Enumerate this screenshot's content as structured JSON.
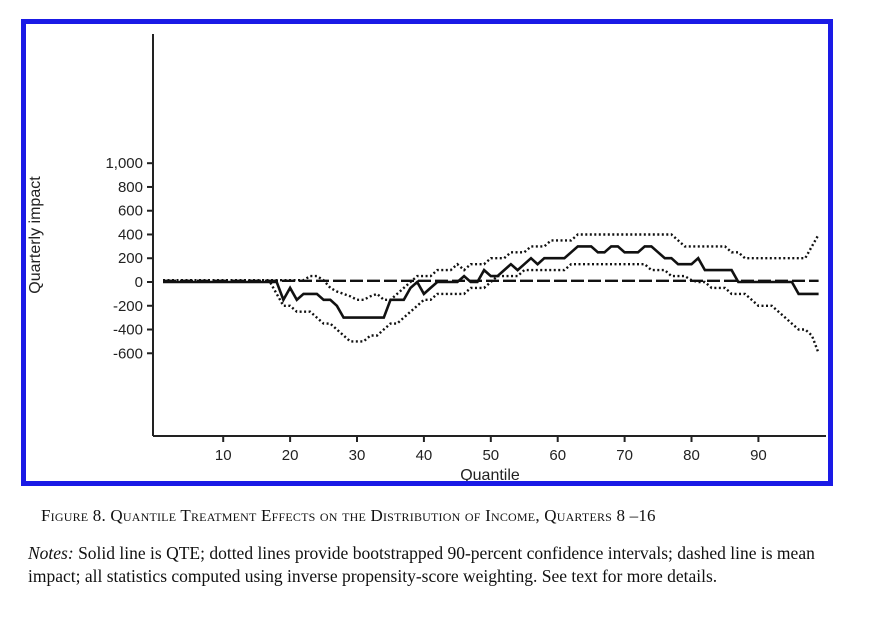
{
  "chart_data": {
    "type": "line",
    "xlabel": "Quantile",
    "ylabel": "Quarterly impact",
    "xlim": [
      0,
      100
    ],
    "ylim": [
      -650,
      1050
    ],
    "xticks": [
      10,
      20,
      30,
      40,
      50,
      60,
      70,
      80,
      90
    ],
    "xtick_labels": [
      "10",
      "20",
      "30",
      "40",
      "50",
      "60",
      "70",
      "80",
      "90"
    ],
    "yticks": [
      -600,
      -400,
      -200,
      0,
      200,
      400,
      600,
      800,
      1000
    ],
    "ytick_labels": [
      "-600",
      "-400",
      "-200",
      "0",
      "200",
      "400",
      "600",
      "800",
      "1,000"
    ],
    "grid": false,
    "series": [
      {
        "style": "solid",
        "x": [
          1,
          2,
          3,
          4,
          5,
          6,
          7,
          8,
          9,
          10,
          11,
          12,
          13,
          14,
          15,
          16,
          17,
          18,
          19,
          20,
          21,
          22,
          23,
          24,
          25,
          26,
          27,
          28,
          29,
          30,
          31,
          32,
          33,
          34,
          35,
          36,
          37,
          38,
          39,
          40,
          41,
          42,
          43,
          44,
          45,
          46,
          47,
          48,
          49,
          50,
          51,
          52,
          53,
          54,
          55,
          56,
          57,
          58,
          59,
          60,
          61,
          62,
          63,
          64,
          65,
          66,
          67,
          68,
          69,
          70,
          71,
          72,
          73,
          74,
          75,
          76,
          77,
          78,
          79,
          80,
          81,
          82,
          83,
          84,
          85,
          86,
          87,
          88,
          89,
          90,
          91,
          92,
          93,
          94,
          95,
          96,
          97,
          98,
          99
        ],
        "y": [
          0,
          0,
          0,
          0,
          0,
          0,
          0,
          0,
          0,
          0,
          0,
          0,
          0,
          0,
          0,
          0,
          0,
          0,
          -150,
          -50,
          -150,
          -100,
          -100,
          -100,
          -150,
          -150,
          -200,
          -300,
          -300,
          -300,
          -300,
          -300,
          -300,
          -300,
          -150,
          -150,
          -150,
          -50,
          0,
          -100,
          -50,
          0,
          0,
          0,
          0,
          50,
          0,
          0,
          100,
          50,
          50,
          100,
          150,
          100,
          150,
          200,
          150,
          200,
          200,
          200,
          200,
          250,
          300,
          300,
          300,
          250,
          250,
          300,
          300,
          250,
          250,
          250,
          300,
          300,
          250,
          200,
          200,
          150,
          150,
          150,
          200,
          100,
          100,
          100,
          100,
          100,
          0,
          0,
          0,
          0,
          0,
          0,
          0,
          0,
          0,
          -100,
          -100,
          -100,
          -100
        ]
      },
      {
        "style": "dotted",
        "x": [
          1,
          2,
          3,
          4,
          5,
          6,
          7,
          8,
          9,
          10,
          11,
          12,
          13,
          14,
          15,
          16,
          17,
          18,
          19,
          20,
          21,
          22,
          23,
          24,
          25,
          26,
          27,
          28,
          29,
          30,
          31,
          32,
          33,
          34,
          35,
          36,
          37,
          38,
          39,
          40,
          41,
          42,
          43,
          44,
          45,
          46,
          47,
          48,
          49,
          50,
          51,
          52,
          53,
          54,
          55,
          56,
          57,
          58,
          59,
          60,
          61,
          62,
          63,
          64,
          65,
          66,
          67,
          68,
          69,
          70,
          71,
          72,
          73,
          74,
          75,
          76,
          77,
          78,
          79,
          80,
          81,
          82,
          83,
          84,
          85,
          86,
          87,
          88,
          89,
          90,
          91,
          92,
          93,
          94,
          95,
          96,
          97,
          98,
          99
        ],
        "y": [
          15,
          15,
          15,
          15,
          15,
          15,
          15,
          15,
          15,
          15,
          15,
          15,
          15,
          15,
          15,
          15,
          15,
          15,
          15,
          15,
          15,
          15,
          50,
          50,
          15,
          -50,
          -80,
          -100,
          -120,
          -150,
          -150,
          -120,
          -100,
          -150,
          -150,
          -100,
          -50,
          0,
          50,
          50,
          50,
          100,
          100,
          100,
          150,
          100,
          150,
          150,
          150,
          200,
          200,
          200,
          250,
          250,
          250,
          300,
          300,
          300,
          350,
          350,
          350,
          350,
          400,
          400,
          400,
          400,
          400,
          400,
          400,
          400,
          400,
          400,
          400,
          400,
          400,
          400,
          400,
          350,
          300,
          300,
          300,
          300,
          300,
          300,
          300,
          250,
          250,
          200,
          200,
          200,
          200,
          200,
          200,
          200,
          200,
          200,
          200,
          300,
          400
        ]
      },
      {
        "style": "dotted",
        "x": [
          1,
          2,
          3,
          4,
          5,
          6,
          7,
          8,
          9,
          10,
          11,
          12,
          13,
          14,
          15,
          16,
          17,
          18,
          19,
          20,
          21,
          22,
          23,
          24,
          25,
          26,
          27,
          28,
          29,
          30,
          31,
          32,
          33,
          34,
          35,
          36,
          37,
          38,
          39,
          40,
          41,
          42,
          43,
          44,
          45,
          46,
          47,
          48,
          49,
          50,
          51,
          52,
          53,
          54,
          55,
          56,
          57,
          58,
          59,
          60,
          61,
          62,
          63,
          64,
          65,
          66,
          67,
          68,
          69,
          70,
          71,
          72,
          73,
          74,
          75,
          76,
          77,
          78,
          79,
          80,
          81,
          82,
          83,
          84,
          85,
          86,
          87,
          88,
          89,
          90,
          91,
          92,
          93,
          94,
          95,
          96,
          97,
          98,
          99
        ],
        "y": [
          15,
          15,
          15,
          15,
          15,
          15,
          15,
          15,
          15,
          15,
          15,
          15,
          15,
          15,
          15,
          15,
          0,
          -100,
          -200,
          -200,
          -250,
          -250,
          -250,
          -300,
          -350,
          -350,
          -400,
          -450,
          -500,
          -500,
          -500,
          -450,
          -450,
          -400,
          -350,
          -350,
          -300,
          -250,
          -200,
          -150,
          -150,
          -100,
          -100,
          -100,
          -100,
          -100,
          -50,
          -50,
          -50,
          0,
          50,
          50,
          50,
          50,
          100,
          100,
          100,
          100,
          100,
          100,
          100,
          150,
          150,
          150,
          150,
          150,
          150,
          150,
          150,
          150,
          150,
          150,
          150,
          100,
          100,
          100,
          50,
          50,
          50,
          15,
          0,
          0,
          -50,
          -50,
          -50,
          -100,
          -100,
          -100,
          -150,
          -200,
          -200,
          -200,
          -250,
          -300,
          -350,
          -400,
          -400,
          -450,
          -600
        ]
      },
      {
        "style": "dashed",
        "x": [
          1,
          99
        ],
        "y": [
          10,
          10
        ]
      }
    ]
  },
  "caption": "Figure 8. Quantile Treatment Effects on the Distribution of Income, Quarters 8 –16",
  "notes": {
    "label": "Notes:",
    "text": " Solid line is QTE; dotted lines provide bootstrapped 90-percent confidence intervals; dashed line is mean impact; all statistics computed using inverse propensity-score weighting. See text for more details."
  }
}
